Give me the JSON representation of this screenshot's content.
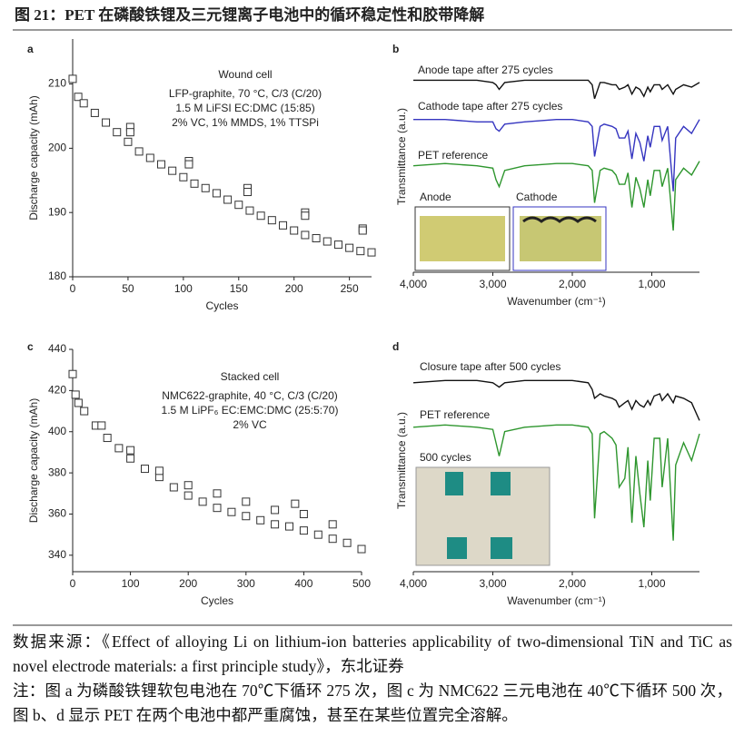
{
  "header": {
    "title": "图 21：PET 在磷酸铁锂及三元锂离子电池中的循环稳定性和胶带降解"
  },
  "chart_data": [
    {
      "type": "scatter",
      "panel_label": "a",
      "xlabel": "Cycles",
      "ylabel": "Discharge capacity (mAh)",
      "annotations": [
        "Wound cell",
        "LFP-graphite, 70 °C, C/3 (C/20)",
        "1.5 M LiFSI EC:DMC (15:85)",
        "2% VC, 1% MMDS, 1% TTSPi"
      ],
      "xlim": [
        0,
        270
      ],
      "ylim": [
        180,
        217
      ],
      "xticks": [
        0,
        50,
        100,
        150,
        200,
        250
      ],
      "yticks": [
        180,
        190,
        200,
        210
      ],
      "x": [
        0,
        5,
        10,
        20,
        30,
        40,
        50,
        60,
        70,
        80,
        90,
        100,
        110,
        120,
        130,
        140,
        150,
        160,
        170,
        180,
        190,
        200,
        210,
        220,
        230,
        240,
        250,
        260,
        270,
        52,
        52,
        105,
        105,
        158,
        158,
        210,
        210,
        262,
        262
      ],
      "values": [
        210.8,
        208,
        207,
        205.5,
        204,
        202.5,
        201,
        199.5,
        198.5,
        197.5,
        196.5,
        195.5,
        194.5,
        193.8,
        193,
        192,
        191.2,
        190.3,
        189.5,
        188.8,
        188,
        187.2,
        186.5,
        186,
        185.5,
        185,
        184.5,
        184,
        183.8,
        203.3,
        202.5,
        198,
        197.5,
        193.8,
        193.2,
        190,
        189.5,
        187.5,
        187.2
      ]
    },
    {
      "type": "line",
      "panel_label": "b",
      "xlabel": "Wavenumber (cm⁻¹)",
      "ylabel": "Transmittance (a.u.)",
      "annotations": [
        "Anode",
        "Cathode"
      ],
      "xlim": [
        4000,
        400
      ],
      "ylim": [
        0,
        100
      ],
      "xticks": [
        {
          "value": 4000,
          "label": "4,000"
        },
        {
          "value": 3000,
          "label": "3,000"
        },
        {
          "value": 2000,
          "label": "2,000"
        },
        {
          "value": 1000,
          "label": "1,000"
        }
      ],
      "x": [
        4000,
        3600,
        3200,
        3000,
        2960,
        2920,
        2850,
        2600,
        2200,
        2000,
        1800,
        1750,
        1720,
        1650,
        1600,
        1500,
        1450,
        1410,
        1340,
        1300,
        1250,
        1200,
        1150,
        1100,
        1050,
        1020,
        970,
        900,
        870,
        800,
        730,
        700,
        600,
        500,
        400
      ],
      "series": [
        {
          "name": "Anode tape after 275 cycles",
          "color": "#111111",
          "values": [
            83,
            83,
            83,
            82,
            81,
            79,
            82,
            83,
            83,
            83,
            83,
            81,
            75,
            82,
            82,
            81,
            81,
            79,
            80,
            81,
            77,
            80,
            79,
            76,
            80,
            78,
            81,
            81,
            79,
            81,
            77,
            79,
            81,
            80,
            82
          ]
        },
        {
          "name": "Cathode tape after 275 cycles",
          "color": "#3535c0",
          "values": [
            66,
            66,
            65,
            65,
            62,
            61,
            64,
            65,
            66,
            66,
            65,
            63,
            50,
            63,
            64,
            63,
            62,
            58,
            58,
            61,
            49,
            60,
            56,
            48,
            59,
            54,
            63,
            63,
            57,
            63,
            35,
            58,
            63,
            60,
            66
          ]
        },
        {
          "name": "PET reference",
          "color": "#2e962e",
          "values": [
            46,
            47,
            46,
            45,
            40,
            37,
            44,
            46,
            47,
            47,
            46,
            44,
            30,
            44,
            45,
            44,
            42,
            38,
            38,
            43,
            28,
            41,
            36,
            28,
            40,
            33,
            44,
            44,
            37,
            45,
            18,
            40,
            45,
            42,
            48
          ]
        }
      ]
    },
    {
      "type": "scatter",
      "panel_label": "c",
      "xlabel": "Cycles",
      "ylabel": "Discharge capacity (mAh)",
      "annotations": [
        "Stacked cell",
        "NMC622-graphite, 40 °C, C/3 (C/20)",
        "1.5 M LiPF₆ EC:EMC:DMC (25:5:70)",
        "2% VC"
      ],
      "xlim": [
        0,
        500
      ],
      "ylim": [
        332,
        440
      ],
      "xticks": [
        0,
        100,
        200,
        300,
        400,
        500
      ],
      "yticks": [
        340,
        360,
        380,
        400,
        420,
        440
      ],
      "x": [
        0,
        5,
        10,
        20,
        40,
        60,
        80,
        100,
        125,
        150,
        175,
        200,
        225,
        250,
        275,
        300,
        325,
        350,
        375,
        400,
        425,
        450,
        475,
        500,
        50,
        100,
        150,
        200,
        250,
        300,
        350,
        385,
        400,
        450
      ],
      "values": [
        428,
        418,
        414,
        410,
        403,
        397,
        392,
        387,
        382,
        378,
        373,
        369,
        366,
        363,
        361,
        359,
        357,
        355,
        354,
        352,
        350,
        348,
        346,
        343,
        403,
        391,
        381,
        374,
        370,
        366,
        362,
        365,
        360,
        355
      ]
    },
    {
      "type": "line",
      "panel_label": "d",
      "xlabel": "Wavenumber (cm⁻¹)",
      "ylabel": "Transmittance (a.u.)",
      "annotations": [
        "500 cycles"
      ],
      "xlim": [
        4000,
        400
      ],
      "ylim": [
        0,
        100
      ],
      "xticks": [
        {
          "value": 4000,
          "label": "4,000"
        },
        {
          "value": 3000,
          "label": "3,000"
        },
        {
          "value": 2000,
          "label": "2,000"
        },
        {
          "value": 1000,
          "label": "1,000"
        }
      ],
      "x": [
        4000,
        3600,
        3200,
        3000,
        2960,
        2920,
        2850,
        2600,
        2200,
        2000,
        1800,
        1750,
        1720,
        1650,
        1600,
        1500,
        1450,
        1410,
        1340,
        1300,
        1250,
        1200,
        1150,
        1100,
        1050,
        1020,
        970,
        900,
        870,
        800,
        730,
        700,
        600,
        500,
        400
      ],
      "series": [
        {
          "name": "Closure tape after 500 cycles",
          "color": "#111111",
          "values": [
            85,
            86,
            86,
            85,
            84,
            83,
            85,
            86,
            86,
            86,
            85,
            82,
            78,
            80,
            79,
            78,
            77,
            74,
            76,
            77,
            73,
            77,
            75,
            74,
            77,
            75,
            79,
            80,
            77,
            80,
            76,
            79,
            78,
            76,
            68
          ]
        },
        {
          "name": "PET reference",
          "color": "#2e962e",
          "values": [
            65,
            66,
            65,
            64,
            58,
            52,
            63,
            65,
            66,
            66,
            65,
            62,
            24,
            62,
            63,
            60,
            57,
            38,
            42,
            56,
            22,
            52,
            35,
            20,
            50,
            32,
            60,
            60,
            38,
            60,
            14,
            48,
            58,
            50,
            62
          ]
        }
      ]
    }
  ],
  "footer": {
    "source": "数据来源：《Effect of alloying Li on lithium-ion batteries applicability of two-dimensional TiN and TiC as novel electrode materials: a first principle study》，东北证券",
    "note": "注：图 a 为磷酸铁锂软包电池在 70℃下循环 275 次，图 c 为 NMC622 三元电池在 40℃下循环 500 次，图 b、d 显示 PET 在两个电池中都严重腐蚀，甚至在某些位置完全溶解。"
  }
}
